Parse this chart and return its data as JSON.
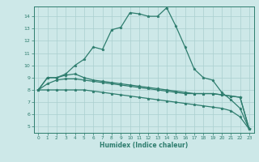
{
  "xlabel": "Humidex (Indice chaleur)",
  "xlim": [
    -0.5,
    23.5
  ],
  "ylim": [
    4.5,
    14.8
  ],
  "xticks": [
    0,
    1,
    2,
    3,
    4,
    5,
    6,
    7,
    8,
    9,
    10,
    11,
    12,
    13,
    14,
    15,
    16,
    17,
    18,
    19,
    20,
    21,
    22,
    23
  ],
  "yticks": [
    5,
    6,
    7,
    8,
    9,
    10,
    11,
    12,
    13,
    14
  ],
  "bg_color": "#cde8e8",
  "line_color": "#2e7d6e",
  "grid_color": "#aacfcf",
  "line1_x": [
    0,
    1,
    2,
    3,
    4,
    5,
    6,
    7,
    8,
    9,
    10,
    11,
    12,
    13,
    14,
    15,
    16,
    17,
    18,
    19,
    20,
    21,
    22,
    23
  ],
  "line1_y": [
    8.0,
    9.0,
    9.0,
    9.3,
    10.0,
    10.5,
    11.5,
    11.3,
    12.9,
    13.1,
    14.3,
    14.2,
    14.0,
    14.0,
    14.7,
    13.2,
    11.5,
    9.7,
    9.0,
    8.8,
    7.8,
    7.2,
    6.5,
    4.8
  ],
  "line2_x": [
    0,
    1,
    2,
    3,
    4,
    5,
    6,
    7,
    8,
    9,
    10,
    11,
    12,
    13,
    14,
    15,
    16,
    17,
    18,
    19,
    20,
    21,
    22,
    23
  ],
  "line2_y": [
    8.0,
    9.0,
    9.0,
    9.2,
    9.3,
    9.0,
    8.8,
    8.7,
    8.6,
    8.5,
    8.4,
    8.3,
    8.2,
    8.1,
    8.0,
    7.9,
    7.8,
    7.7,
    7.7,
    7.7,
    7.6,
    7.5,
    7.4,
    4.8
  ],
  "line3_x": [
    0,
    1,
    2,
    3,
    4,
    5,
    6,
    7,
    8,
    9,
    10,
    11,
    12,
    13,
    14,
    15,
    16,
    17,
    18,
    19,
    20,
    21,
    22,
    23
  ],
  "line3_y": [
    8.0,
    8.5,
    8.8,
    8.9,
    8.9,
    8.8,
    8.7,
    8.6,
    8.5,
    8.4,
    8.3,
    8.2,
    8.1,
    8.0,
    7.9,
    7.8,
    7.7,
    7.7,
    7.7,
    7.7,
    7.6,
    7.5,
    7.4,
    4.8
  ],
  "line4_x": [
    0,
    1,
    2,
    3,
    4,
    5,
    6,
    7,
    8,
    9,
    10,
    11,
    12,
    13,
    14,
    15,
    16,
    17,
    18,
    19,
    20,
    21,
    22,
    23
  ],
  "line4_y": [
    8.0,
    8.0,
    8.0,
    8.0,
    8.0,
    8.0,
    7.9,
    7.8,
    7.7,
    7.6,
    7.5,
    7.4,
    7.3,
    7.2,
    7.1,
    7.0,
    6.9,
    6.8,
    6.7,
    6.6,
    6.5,
    6.3,
    5.8,
    4.8
  ]
}
